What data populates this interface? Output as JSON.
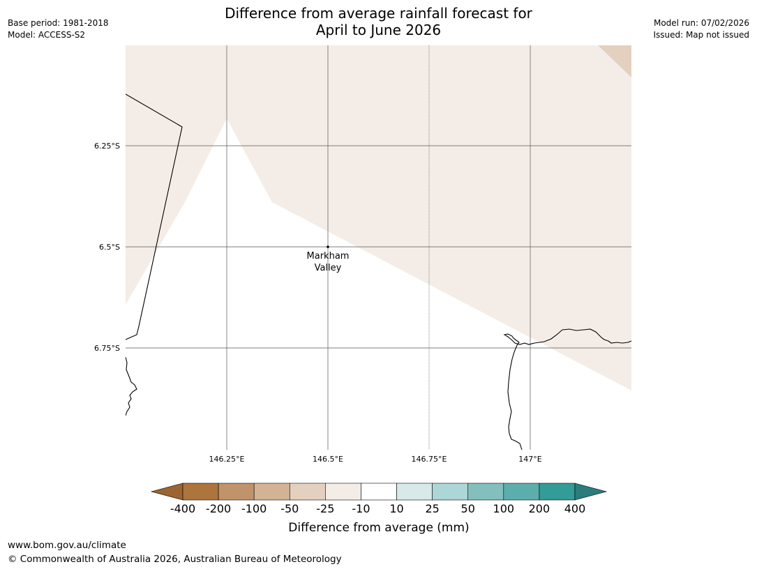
{
  "title": {
    "line1": "Difference from average rainfall forecast for",
    "line2": "April to June 2026"
  },
  "meta_left": {
    "base_period": "Base period: 1981-2018",
    "model": "Model: ACCESS-S2"
  },
  "meta_right": {
    "model_run": "Model run: 07/02/2026",
    "issued": "Issued: Map not issued"
  },
  "map": {
    "lat_labels": [
      "6.25°S",
      "6.5°S",
      "6.75°S"
    ],
    "lon_labels": [
      "146.25°E",
      "146.5°E",
      "146.75°E",
      "147°E"
    ],
    "place": {
      "name_line1": "Markham",
      "name_line2": "Valley"
    }
  },
  "colorbar": {
    "title": "Difference from average (mm)",
    "ticks": [
      "-400",
      "-200",
      "-100",
      "-50",
      "-25",
      "-10",
      "10",
      "25",
      "50",
      "100",
      "200",
      "400"
    ],
    "colors": [
      "#9c6430",
      "#ad743c",
      "#c1936a",
      "#d4b394",
      "#e4d0bf",
      "#f4ede7",
      "#ffffff",
      "#d7e9e9",
      "#acd7d6",
      "#83c0bd",
      "#5caeac",
      "#339b98",
      "#2a7d7b"
    ]
  },
  "footer": {
    "url": "www.bom.gov.au/climate",
    "copyright": "© Commonwealth of Australia 2026, Australian Bureau of Meteorology"
  }
}
